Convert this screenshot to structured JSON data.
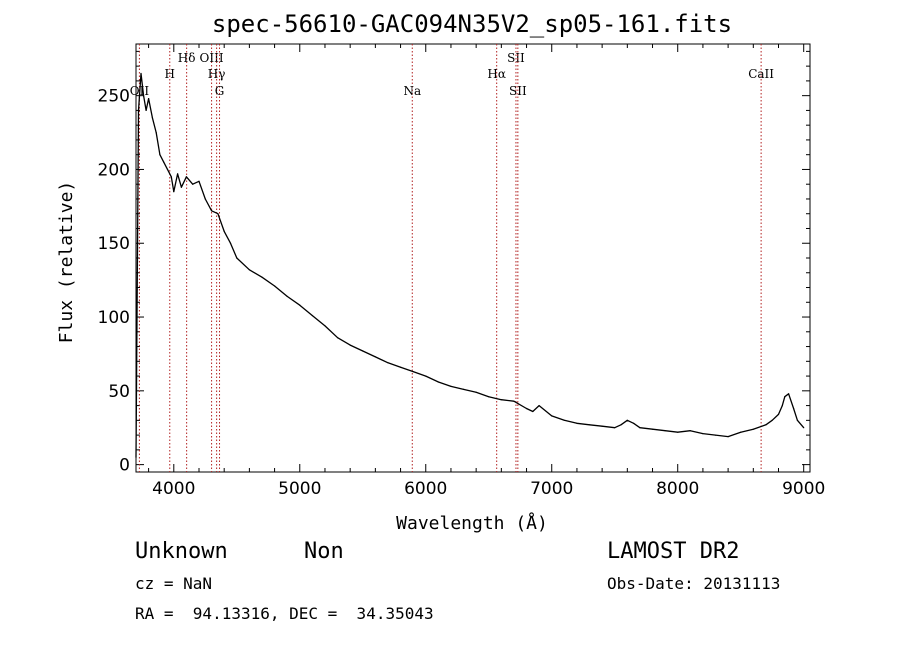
{
  "chart_data": {
    "type": "line",
    "title": "spec-56610-GAC094N35V2_sp05-161.fits",
    "xlabel": "Wavelength (Å)",
    "ylabel": "Flux (relative)",
    "xlim": [
      3700,
      9050
    ],
    "ylim": [
      -5,
      285
    ],
    "xticks": [
      4000,
      5000,
      6000,
      7000,
      8000,
      9000
    ],
    "yticks": [
      0,
      50,
      100,
      150,
      200,
      250
    ],
    "xtick_labels": [
      "4000",
      "5000",
      "6000",
      "7000",
      "8000",
      "9000"
    ],
    "ytick_labels": [
      "0",
      "50",
      "100",
      "150",
      "200",
      "250"
    ],
    "line_color": "#000000",
    "line_marker_color": "#b22222",
    "series": [
      {
        "x": [
          3700,
          3720,
          3740,
          3760,
          3780,
          3800,
          3830,
          3860,
          3890,
          3920,
          3950,
          3980,
          4000,
          4030,
          4060,
          4100,
          4150,
          4200,
          4250,
          4300,
          4350,
          4400,
          4450,
          4500,
          4600,
          4700,
          4800,
          4900,
          5000,
          5100,
          5200,
          5300,
          5400,
          5500,
          5600,
          5700,
          5800,
          5900,
          6000,
          6100,
          6200,
          6300,
          6400,
          6500,
          6600,
          6700,
          6800,
          6850,
          6900,
          7000,
          7100,
          7200,
          7300,
          7400,
          7500,
          7550,
          7600,
          7650,
          7700,
          7800,
          7900,
          8000,
          8100,
          8200,
          8300,
          8400,
          8500,
          8600,
          8700,
          8750,
          8800,
          8830,
          8850,
          8880,
          8920,
          8950,
          9000
        ],
        "y": [
          5,
          240,
          265,
          250,
          240,
          248,
          235,
          225,
          210,
          205,
          200,
          195,
          185,
          197,
          188,
          195,
          190,
          192,
          180,
          172,
          170,
          158,
          150,
          140,
          132,
          127,
          121,
          114,
          108,
          101,
          94,
          86,
          81,
          77,
          73,
          69,
          66,
          63,
          60,
          56,
          53,
          51,
          49,
          46,
          44,
          43,
          38,
          36,
          40,
          33,
          30,
          28,
          27,
          26,
          25,
          27,
          30,
          28,
          25,
          24,
          23,
          22,
          23,
          21,
          20,
          19,
          22,
          24,
          27,
          30,
          34,
          40,
          46,
          48,
          38,
          30,
          25
        ]
      }
    ],
    "line_markers": [
      {
        "label": "OII",
        "x": 3727,
        "row": 3
      },
      {
        "label": "H",
        "x": 3968,
        "row": 2
      },
      {
        "label": "Hδ",
        "x": 4102,
        "row": 1
      },
      {
        "label": "OIII",
        "x": 4300,
        "row": 1
      },
      {
        "label": "Hγ",
        "x": 4340,
        "row": 2
      },
      {
        "label": "G",
        "x": 4363,
        "row": 3
      },
      {
        "label": "Na",
        "x": 5893,
        "row": 3
      },
      {
        "label": "Hα",
        "x": 6563,
        "row": 2
      },
      {
        "label": "SII",
        "x": 6716,
        "row": 1
      },
      {
        "label": "SII",
        "x": 6731,
        "row": 3
      },
      {
        "label": "CaII",
        "x": 8662,
        "row": 2
      }
    ]
  },
  "info": {
    "class_label": "Unknown",
    "subclass_label": "Non",
    "survey": "LAMOST DR2",
    "redshift": "cz = NaN",
    "obs_date": "Obs-Date: 20131113",
    "coords": "RA =  94.13316, DEC =  34.35043"
  }
}
